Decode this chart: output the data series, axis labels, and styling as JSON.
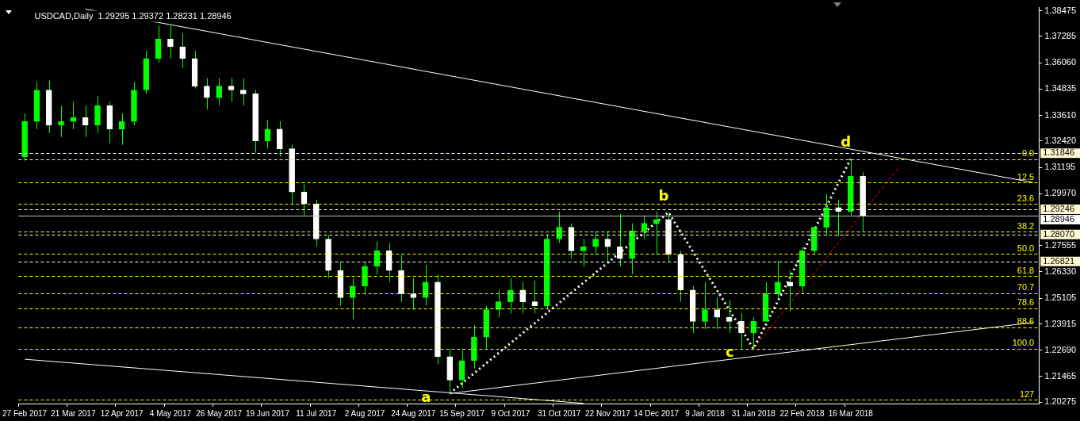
{
  "chart_data": {
    "type": "candlestick",
    "title": "USDCAD,Daily  1.29295 1.29372 1.28231 1.28946",
    "color": "#00ff00",
    "colors": [
      "#00ff00",
      "#00ff00",
      "#ffffff",
      "#00ff00",
      "#00ff00",
      "#ffffff",
      "#00ff00",
      "#ffffff",
      "#00ff00",
      "#00ff00",
      "#00ff00",
      "#00ff00",
      "#ffffff",
      "#ffffff",
      "#ffffff",
      "#ffffff",
      "#00ff00",
      "#ffffff",
      "#ffffff",
      "#ffffff",
      "#00ff00",
      "#ffffff",
      "#ffffff",
      "#ffffff",
      "#ffffff",
      "#ffffff",
      "#ffffff",
      "#00ff00",
      "#00ff00",
      "#00ff00",
      "#ffffff",
      "#ffffff",
      "#ffffff",
      "#00ff00",
      "#ffffff",
      "#ffffff",
      "#00ff00",
      "#00ff00",
      "#00ff00",
      "#00ff00",
      "#00ff00",
      "#ffffff",
      "#ffffff",
      "#00ff00",
      "#00ff00",
      "#ffffff",
      "#00ff00",
      "#00ff00",
      "#ffffff",
      "#ffffff",
      "#00ff00",
      "#00ff00",
      "#00ff00",
      "#ffffff",
      "#ffffff",
      "#ffffff",
      "#00ff00",
      "#ffffff",
      "#ffffff",
      "#ffffff",
      "#00ff00",
      "#00ff00",
      "#00ff00",
      "#ffffff",
      "#00ff00",
      "#00ff00",
      "#00ff00",
      "#ffffff",
      "#00ff00",
      "#ffffff",
      null,
      null,
      null,
      null,
      null,
      null,
      null,
      null,
      null,
      null,
      null,
      null,
      null,
      null
    ],
    "categories": [
      "27 Feb 2017",
      null,
      null,
      null,
      "21 Mar 2017",
      null,
      null,
      null,
      "12 Apr 2017",
      null,
      null,
      null,
      "4 May 2017",
      null,
      null,
      null,
      "26 May 2017",
      null,
      null,
      null,
      "19 Jun 2017",
      null,
      null,
      null,
      "11 Jul 2017",
      null,
      null,
      null,
      "2 Aug 2017",
      null,
      null,
      null,
      "24 Aug 2017",
      null,
      null,
      null,
      "15 Sep 2017",
      null,
      null,
      null,
      "9 Oct 2017",
      null,
      null,
      null,
      "31 Oct 2017",
      null,
      null,
      null,
      "22 Nov 2017",
      null,
      null,
      null,
      "14 Dec 2017",
      null,
      null,
      null,
      "9 Jan 2018",
      null,
      null,
      null,
      "31 Jan 2018",
      null,
      null,
      null,
      "22 Feb 2018",
      null,
      null,
      null,
      "16 Mar 2018",
      null,
      null,
      null,
      null,
      null,
      null,
      null,
      null,
      null,
      null,
      null,
      null,
      null,
      null,
      null
    ],
    "ohlc": [
      [
        1.3169,
        1.337,
        1.3151,
        1.3333
      ],
      [
        1.3333,
        1.3516,
        1.3297,
        1.3479
      ],
      [
        1.3479,
        1.3523,
        1.3279,
        1.3315
      ],
      [
        1.3315,
        1.3406,
        1.326,
        1.3333
      ],
      [
        1.3333,
        1.3424,
        1.3297,
        1.3351
      ],
      [
        1.3351,
        1.3406,
        1.326,
        1.3315
      ],
      [
        1.3315,
        1.345,
        1.3279,
        1.3406
      ],
      [
        1.3406,
        1.3424,
        1.3231,
        1.3297
      ],
      [
        1.3297,
        1.337,
        1.3224,
        1.3333
      ],
      [
        1.3333,
        1.3516,
        1.3315,
        1.3479
      ],
      [
        1.3479,
        1.3661,
        1.3461,
        1.3625
      ],
      [
        1.3625,
        1.3778,
        1.3607,
        1.3716
      ],
      [
        1.3716,
        1.3778,
        1.3625,
        1.368
      ],
      [
        1.368,
        1.3742,
        1.3581,
        1.3625
      ],
      [
        1.3625,
        1.3661,
        1.3486,
        1.3497
      ],
      [
        1.3497,
        1.3534,
        1.3388,
        1.3443
      ],
      [
        1.3443,
        1.3534,
        1.3406,
        1.3497
      ],
      [
        1.3497,
        1.3534,
        1.3424,
        1.3479
      ],
      [
        1.3479,
        1.3534,
        1.3406,
        1.3461
      ],
      [
        1.3461,
        1.3479,
        1.3187,
        1.3242
      ],
      [
        1.3242,
        1.3341,
        1.3206,
        1.3297
      ],
      [
        1.3297,
        1.3333,
        1.3169,
        1.3206
      ],
      [
        1.3206,
        1.3224,
        1.295,
        1.3005
      ],
      [
        1.3005,
        1.3041,
        1.2896,
        1.295
      ],
      [
        1.295,
        1.2969,
        1.275,
        1.2786
      ],
      [
        1.2786,
        1.2804,
        1.2604,
        1.264
      ],
      [
        1.264,
        1.2677,
        1.2476,
        1.2513
      ],
      [
        1.2513,
        1.2604,
        1.2414,
        1.2567
      ],
      [
        1.2567,
        1.2677,
        1.2531,
        1.2659
      ],
      [
        1.2659,
        1.2775,
        1.2622,
        1.2731
      ],
      [
        1.2731,
        1.2768,
        1.2586,
        1.264
      ],
      [
        1.264,
        1.2713,
        1.2494,
        1.2531
      ],
      [
        1.2531,
        1.2604,
        1.2458,
        1.2513
      ],
      [
        1.2513,
        1.2666,
        1.2476,
        1.2586
      ],
      [
        1.2586,
        1.2622,
        1.2203,
        1.2239
      ],
      [
        1.2239,
        1.2276,
        1.2068,
        1.213
      ],
      [
        1.213,
        1.2276,
        1.2093,
        1.2221
      ],
      [
        1.2221,
        1.2385,
        1.2184,
        1.233
      ],
      [
        1.233,
        1.2476,
        1.2276,
        1.2458
      ],
      [
        1.2458,
        1.2549,
        1.2422,
        1.2494
      ],
      [
        1.2494,
        1.2604,
        1.244,
        1.2549
      ],
      [
        1.2549,
        1.2586,
        1.244,
        1.2494
      ],
      [
        1.2494,
        1.2593,
        1.244,
        1.2476
      ],
      [
        1.2476,
        1.2804,
        1.2458,
        1.2786
      ],
      [
        1.2786,
        1.2914,
        1.2768,
        1.2841
      ],
      [
        1.2841,
        1.2859,
        1.2695,
        1.2731
      ],
      [
        1.2731,
        1.2786,
        1.2659,
        1.275
      ],
      [
        1.275,
        1.2823,
        1.2713,
        1.2786
      ],
      [
        1.2786,
        1.2823,
        1.2677,
        1.275
      ],
      [
        1.275,
        1.2903,
        1.2659,
        1.2695
      ],
      [
        1.2695,
        1.2859,
        1.2622,
        1.2823
      ],
      [
        1.2823,
        1.2896,
        1.2786,
        1.2859
      ],
      [
        1.2859,
        1.2914,
        1.2713,
        1.2877
      ],
      [
        1.2877,
        1.291,
        1.2677,
        1.2713
      ],
      [
        1.2713,
        1.2731,
        1.2494,
        1.2549
      ],
      [
        1.2549,
        1.2567,
        1.2349,
        1.2403
      ],
      [
        1.2403,
        1.2586,
        1.2367,
        1.2458
      ],
      [
        1.2458,
        1.2513,
        1.2367,
        1.2422
      ],
      [
        1.2422,
        1.2502,
        1.2349,
        1.2403
      ],
      [
        1.2403,
        1.244,
        1.2276,
        1.2349
      ],
      [
        1.2349,
        1.2422,
        1.2276,
        1.2403
      ],
      [
        1.2403,
        1.2586,
        1.2403,
        1.2531
      ],
      [
        1.2531,
        1.2684,
        1.2513,
        1.2586
      ],
      [
        1.2586,
        1.264,
        1.2451,
        1.2567
      ],
      [
        1.2567,
        1.275,
        1.2531,
        1.2731
      ],
      [
        1.2731,
        1.2841,
        1.272,
        1.2841
      ],
      [
        1.2841,
        1.2994,
        1.2804,
        1.2932
      ],
      [
        1.2932,
        1.2969,
        1.2797,
        1.2914
      ],
      [
        1.2914,
        1.3158,
        1.2896,
        1.3078
      ],
      [
        1.3078,
        1.3096,
        1.2823,
        1.28946
      ],
      null,
      null,
      null,
      null,
      null,
      null,
      null,
      null,
      null,
      null,
      null,
      null,
      null,
      null
    ],
    "series": [
      {
        "type": "line",
        "color": "#ffffff",
        "line_style": "solid",
        "values": [
          null,
          null,
          null,
          null,
          null,
          1.3855,
          null,
          null,
          null,
          null,
          null,
          null,
          null,
          null,
          null,
          null,
          null,
          null,
          null,
          null,
          null,
          null,
          null,
          null,
          null,
          null,
          null,
          null,
          null,
          null,
          null,
          null,
          null,
          null,
          null,
          null,
          null,
          null,
          null,
          null,
          null,
          null,
          null,
          null,
          null,
          null,
          null,
          null,
          null,
          null,
          null,
          null,
          null,
          null,
          null,
          null,
          null,
          null,
          null,
          null,
          null,
          null,
          null,
          null,
          null,
          null,
          null,
          null,
          null,
          null,
          null,
          null,
          null,
          null,
          null,
          null,
          null,
          null,
          null,
          null,
          null,
          null,
          null,
          1.3049
        ]
      },
      {
        "type": "line",
        "color": "#ffffff",
        "line_style": "solid",
        "values": [
          1.2227,
          null,
          null,
          null,
          null,
          null,
          null,
          null,
          null,
          null,
          null,
          null,
          null,
          null,
          null,
          null,
          null,
          null,
          null,
          null,
          null,
          null,
          null,
          null,
          null,
          null,
          null,
          null,
          null,
          null,
          null,
          null,
          null,
          null,
          null,
          null,
          null,
          null,
          null,
          null,
          null,
          null,
          null,
          null,
          null,
          null,
          1.2022,
          null,
          null,
          null,
          null,
          null,
          null,
          null,
          null,
          null,
          null,
          null,
          null,
          null,
          null,
          null,
          null,
          null,
          null,
          null,
          null,
          null,
          null,
          null,
          null,
          null,
          null,
          null,
          null,
          null,
          null,
          null,
          null,
          null,
          null,
          null,
          null,
          null
        ]
      },
      {
        "type": "line",
        "color": "#ffffff",
        "line_style": "solid",
        "values": [
          null,
          null,
          null,
          null,
          null,
          null,
          null,
          null,
          null,
          null,
          null,
          null,
          null,
          null,
          null,
          null,
          null,
          null,
          null,
          null,
          null,
          null,
          null,
          null,
          null,
          null,
          null,
          null,
          null,
          null,
          null,
          null,
          null,
          null,
          null,
          1.2068,
          null,
          null,
          null,
          null,
          null,
          null,
          null,
          null,
          null,
          null,
          null,
          null,
          null,
          null,
          null,
          null,
          null,
          null,
          null,
          null,
          null,
          null,
          null,
          null,
          null,
          null,
          null,
          null,
          null,
          null,
          null,
          null,
          null,
          null,
          null,
          null,
          null,
          null,
          null,
          null,
          null,
          null,
          null,
          null,
          null,
          null,
          null,
          1.2398
        ]
      },
      {
        "type": "line",
        "color": "#ffffff",
        "line_style": "dotted",
        "values": [
          null,
          null,
          null,
          null,
          null,
          null,
          null,
          null,
          null,
          null,
          null,
          null,
          null,
          null,
          null,
          null,
          null,
          null,
          null,
          null,
          null,
          null,
          null,
          null,
          null,
          null,
          null,
          null,
          null,
          null,
          null,
          null,
          null,
          null,
          null,
          1.2068,
          null,
          null,
          null,
          null,
          null,
          null,
          null,
          null,
          null,
          null,
          null,
          null,
          null,
          null,
          null,
          null,
          null,
          1.291,
          null,
          null,
          null,
          null,
          null,
          null,
          1.2276,
          null,
          null,
          null,
          null,
          null,
          null,
          null,
          1.3158,
          null,
          null,
          null,
          null,
          null,
          null,
          null,
          null,
          null,
          null,
          null,
          null,
          null,
          null,
          null
        ],
        "value_labels": [
          null,
          null,
          null,
          null,
          null,
          null,
          null,
          null,
          null,
          null,
          null,
          null,
          null,
          null,
          null,
          null,
          null,
          null,
          null,
          null,
          null,
          null,
          null,
          null,
          null,
          null,
          null,
          null,
          null,
          null,
          null,
          null,
          null,
          null,
          null,
          "a",
          null,
          null,
          null,
          null,
          null,
          null,
          null,
          null,
          null,
          null,
          null,
          null,
          null,
          null,
          null,
          null,
          null,
          "b",
          null,
          null,
          null,
          null,
          null,
          null,
          "c",
          null,
          null,
          null,
          null,
          null,
          null,
          null,
          "d",
          null,
          null,
          null,
          null,
          null,
          null,
          null,
          null,
          null,
          null,
          null,
          null,
          null,
          null,
          null
        ]
      },
      {
        "type": "line",
        "color": "#ff0000",
        "line_style": "dashed",
        "values": [
          null,
          null,
          null,
          null,
          null,
          null,
          null,
          null,
          null,
          null,
          null,
          null,
          null,
          null,
          null,
          null,
          null,
          null,
          null,
          null,
          null,
          null,
          null,
          null,
          null,
          null,
          null,
          null,
          null,
          null,
          null,
          null,
          null,
          null,
          null,
          null,
          null,
          null,
          null,
          null,
          null,
          null,
          null,
          null,
          null,
          null,
          null,
          null,
          null,
          null,
          null,
          null,
          null,
          null,
          null,
          null,
          null,
          null,
          null,
          null,
          1.2276,
          null,
          null,
          null,
          null,
          null,
          null,
          null,
          null,
          null,
          null,
          null,
          1.3122,
          null,
          null,
          null,
          null,
          null,
          null,
          null,
          null,
          null,
          null,
          null
        ]
      }
    ],
    "ylim": [
      1.2021,
      1.3862
    ],
    "yticks": [
      1.20275,
      1.21465,
      {
        "value": 1.2269,
        "label": "1.22690"
      },
      1.23915,
      1.25105,
      {
        "value": 1.2633,
        "label": "1.26330"
      },
      1.27555,
      {
        "value": 1.2997,
        "label": "1.29970"
      },
      1.31195,
      {
        "value": 1.3242,
        "label": "1.32420"
      },
      {
        "value": 1.3361,
        "label": "1.33610"
      },
      1.34835,
      {
        "value": 1.3606,
        "label": "1.36060"
      },
      1.37285,
      1.38475
    ],
    "ref_lines": [
      {
        "axis": "y",
        "value": 1.31846,
        "label": "1.31846",
        "color": "#ffffff",
        "line_style": "dashed"
      },
      {
        "axis": "y",
        "value": 1.29246,
        "label": "1.29246",
        "color": "#ffffff",
        "line_style": "dashed"
      },
      {
        "axis": "y",
        "value": 1.28946,
        "label": "1.28946",
        "color": "#c0c0c0",
        "line_style": "solid"
      },
      {
        "axis": "y",
        "value": 1.2807,
        "label": "1.28070",
        "color": "#ffffff",
        "line_style": "dashed"
      },
      {
        "axis": "y",
        "value": 1.26821,
        "label": "1.26821",
        "color": "#ffffff",
        "line_style": "dashed"
      },
      {
        "axis": "y",
        "value": 1.3158,
        "color": "#ffff00",
        "line_style": "dashed"
      },
      {
        "axis": "y",
        "value": 1.3048,
        "color": "#ffff00",
        "line_style": "dashed"
      },
      {
        "axis": "y",
        "value": 1.295,
        "color": "#ffff00",
        "line_style": "dashed"
      },
      {
        "axis": "y",
        "value": 1.2821,
        "color": "#ffff00",
        "line_style": "dashed"
      },
      {
        "axis": "y",
        "value": 1.2717,
        "color": "#ffff00",
        "line_style": "dashed"
      },
      {
        "axis": "y",
        "value": 1.2613,
        "color": "#ffff00",
        "line_style": "dashed"
      },
      {
        "axis": "y",
        "value": 1.2534,
        "color": "#ffff00",
        "line_style": "dashed"
      },
      {
        "axis": "y",
        "value": 1.2465,
        "color": "#ffff00",
        "line_style": "dashed"
      },
      {
        "axis": "y",
        "value": 1.2376,
        "color": "#ffff00",
        "line_style": "dashed"
      },
      {
        "axis": "y",
        "value": 1.2276,
        "color": "#ffff00",
        "line_style": "dashed"
      },
      {
        "axis": "y",
        "value": 1.2038,
        "color": "#ffff00",
        "line_style": "dashed"
      }
    ],
    "annotations": [
      {
        "text": "0.0",
        "y": 1.3158
      },
      {
        "text": "12.5",
        "y": 1.3048
      },
      {
        "text": "23.6",
        "y": 1.295
      },
      {
        "text": "38.2",
        "y": 1.2821
      },
      {
        "text": "50.0",
        "y": 1.2717
      },
      {
        "text": "61.8",
        "y": 1.2613
      },
      {
        "text": "70.7",
        "y": 1.2534
      },
      {
        "text": "78.6",
        "y": 1.2465
      },
      {
        "text": "88.6",
        "y": 1.2376
      },
      {
        "text": "100.0",
        "y": 1.2276
      },
      {
        "text": "127",
        "y": 1.2038
      }
    ]
  }
}
